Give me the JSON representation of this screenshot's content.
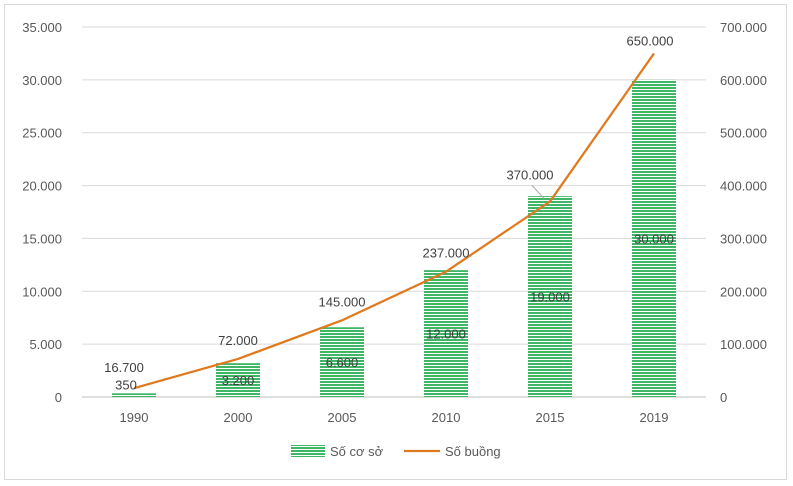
{
  "chart_data": {
    "type": "bar",
    "categories": [
      "1990",
      "2000",
      "2005",
      "2010",
      "2015",
      "2019"
    ],
    "series": [
      {
        "name": "Số cơ sở",
        "type": "bar",
        "axis": "left",
        "values": [
          350,
          3200,
          6600,
          12000,
          19000,
          30000
        ],
        "labels": [
          "350",
          "3.200",
          "6.600",
          "12.000",
          "19.000",
          "30.000"
        ],
        "color": "#3fb566"
      },
      {
        "name": "Số buồng",
        "type": "line",
        "axis": "right",
        "values": [
          16700,
          72000,
          145000,
          237000,
          370000,
          650000
        ],
        "labels": [
          "16.700",
          "72.000",
          "145.000",
          "237.000",
          "370.000",
          "650.000"
        ],
        "color": "#e07a1f"
      }
    ],
    "y_left": {
      "range": [
        0,
        35000
      ],
      "ticks": [
        "0",
        "5.000",
        "10.000",
        "15.000",
        "20.000",
        "25.000",
        "30.000",
        "35.000"
      ]
    },
    "y_right": {
      "range": [
        0,
        700000
      ],
      "ticks": [
        "0",
        "100.000",
        "200.000",
        "300.000",
        "400.000",
        "500.000",
        "600.000",
        "700.000"
      ]
    },
    "grid": true,
    "legend_position": "bottom"
  }
}
